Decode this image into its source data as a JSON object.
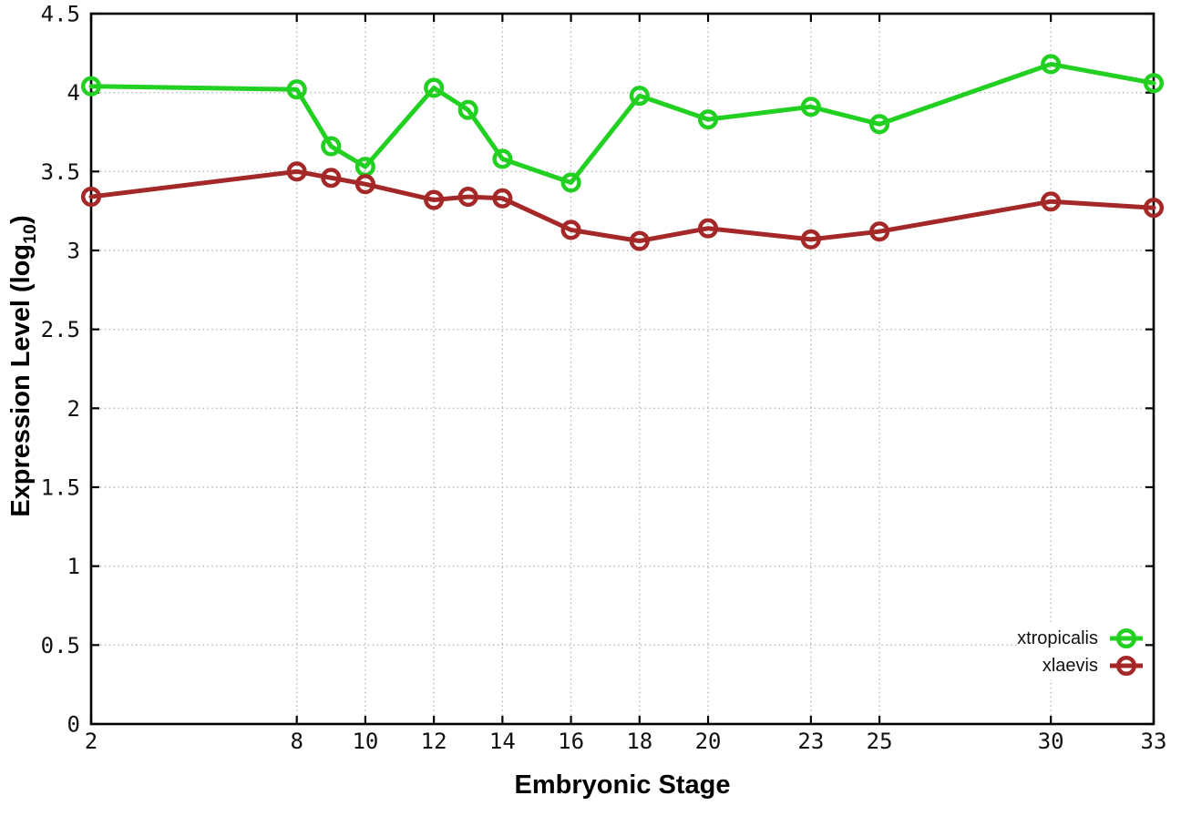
{
  "chart_data": {
    "type": "line",
    "title": "",
    "xlabel": "Embryonic Stage",
    "ylabel": "Expression Level (log10)",
    "ylabel_rich": {
      "pre": "Expression Level (log",
      "sub": "10",
      "post": ")"
    },
    "x": [
      2,
      8,
      9,
      10,
      12,
      13,
      14,
      16,
      18,
      20,
      23,
      25,
      30,
      33
    ],
    "series": [
      {
        "name": "xtropicalis",
        "color": "#22d022",
        "values": [
          4.04,
          4.02,
          3.66,
          3.53,
          4.03,
          3.89,
          3.58,
          3.43,
          3.98,
          3.83,
          3.91,
          3.8,
          4.18,
          4.06
        ]
      },
      {
        "name": "xlaevis",
        "color": "#a52828",
        "values": [
          3.34,
          3.5,
          3.46,
          3.42,
          3.32,
          3.34,
          3.33,
          3.13,
          3.06,
          3.14,
          3.07,
          3.12,
          3.31,
          3.27
        ]
      }
    ],
    "xlim": [
      2,
      33
    ],
    "ylim": [
      0,
      4.5
    ],
    "xticks": [
      2,
      8,
      10,
      12,
      14,
      16,
      18,
      20,
      23,
      25,
      30,
      33
    ],
    "xtick_labels": [
      "2",
      "8",
      "10",
      "12",
      "14",
      "16",
      "18",
      "20",
      "23",
      "25",
      "30",
      "33"
    ],
    "yticks": [
      0,
      0.5,
      1,
      1.5,
      2,
      2.5,
      3,
      3.5,
      4,
      4.5
    ],
    "ytick_labels": [
      "0",
      "0.5",
      "1",
      "1.5",
      "2",
      "2.5",
      "3",
      "3.5",
      "4",
      "4.5"
    ],
    "grid": true,
    "legend_position": "bottom-right",
    "marker": "open-circle"
  }
}
